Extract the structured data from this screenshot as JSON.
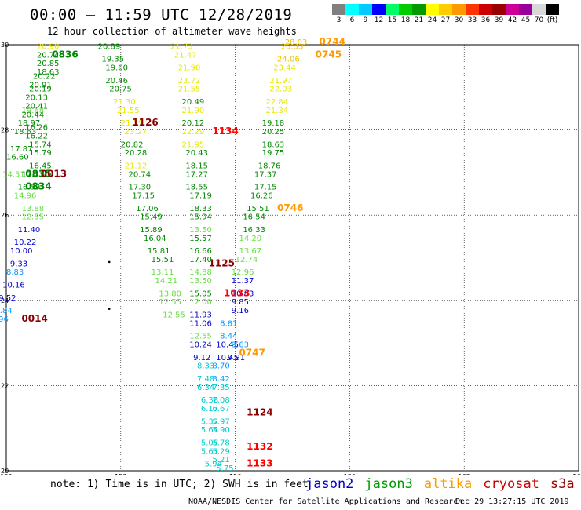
{
  "title": "00:00 — 11:59 UTC 12/28/2019",
  "subtitle": "12 hour collection of altimeter wave heights",
  "colorbar": {
    "colors": [
      "#808080",
      "#00ffff",
      "#00ccff",
      "#0000ff",
      "#00ff66",
      "#00cc00",
      "#009900",
      "#ffff00",
      "#ffcc00",
      "#ff9900",
      "#ff3300",
      "#cc0000",
      "#990000",
      "#cc0099",
      "#990099",
      "#d8d8d8",
      "#000000"
    ],
    "ticks": [
      "3",
      "6",
      "9",
      "12",
      "15",
      "18",
      "21",
      "24",
      "27",
      "30",
      "33",
      "36",
      "39",
      "42",
      "45",
      "70",
      "(ft)"
    ]
  },
  "map": {
    "lon_range": [
      150,
      165
    ],
    "lat_range": [
      20,
      30
    ],
    "x_ticks": [
      "150",
      "153",
      "156",
      "159",
      "162",
      "165"
    ],
    "y_ticks": [
      "20",
      "22",
      "24",
      "26",
      "28",
      "30"
    ]
  },
  "colors": {
    "jason2": "#0000cc",
    "jason3": "#009900",
    "altika": "#ff9900",
    "cryosat": "#cc0000",
    "s3a": "#990000",
    "gray": "#808080",
    "cyan": "#00cccc",
    "sky": "#0099ff",
    "lime": "#33cc33",
    "ltgreen": "#66dd44",
    "green": "#008800",
    "yellow": "#e8e800",
    "gold": "#f0c000",
    "orange": "#ff9900",
    "red": "#ff0000",
    "darkred": "#880000"
  },
  "chart_data": {
    "type": "scatter",
    "title": "00:00 — 11:59 UTC 12/28/2019",
    "subtitle": "12 hour collection of altimeter wave heights",
    "xlabel": "",
    "ylabel": "",
    "unit": "ft",
    "points": [
      {
        "lon": 150.8,
        "lat": 29.3,
        "v": "18.63",
        "c": "green"
      },
      {
        "lon": 150.6,
        "lat": 29.0,
        "v": "20.91",
        "c": "green"
      },
      {
        "lon": 150.4,
        "lat": 28.4,
        "v": "19.68",
        "c": "ltgreen"
      },
      {
        "lon": 150.3,
        "lat": 28.1,
        "v": "18.97",
        "c": "green"
      },
      {
        "lon": 150.2,
        "lat": 27.9,
        "v": "18.63",
        "c": "green"
      },
      {
        "lon": 150.1,
        "lat": 27.5,
        "v": "17.87",
        "c": "green"
      },
      {
        "lon": 150.0,
        "lat": 27.3,
        "v": "16.60",
        "c": "green"
      },
      {
        "lon": 149.9,
        "lat": 26.9,
        "v": "14.51",
        "c": "ltgreen"
      },
      {
        "lon": 150.5,
        "lat": 26.9,
        "v": "0835",
        "c": "green",
        "time": true
      },
      {
        "lon": 150.5,
        "lat": 26.6,
        "v": "0834",
        "c": "green",
        "time": true
      },
      {
        "lon": 150.9,
        "lat": 26.9,
        "v": "0013",
        "c": "darkred",
        "time": true
      },
      {
        "lon": 150.4,
        "lat": 25.9,
        "v": "12.55",
        "c": "ltgreen"
      },
      {
        "lon": 150.3,
        "lat": 25.6,
        "v": "11.40",
        "c": "jason2"
      },
      {
        "lon": 150.2,
        "lat": 25.3,
        "v": "10.22",
        "c": "jason2"
      },
      {
        "lon": 150.1,
        "lat": 25.1,
        "v": "10.00",
        "c": "jason2"
      },
      {
        "lon": 150.1,
        "lat": 24.8,
        "v": "9.33",
        "c": "jason2"
      },
      {
        "lon": 150.0,
        "lat": 24.6,
        "v": "8.83",
        "c": "sky"
      },
      {
        "lon": 149.9,
        "lat": 24.3,
        "v": "10.16",
        "c": "jason2"
      },
      {
        "lon": 149.8,
        "lat": 24.0,
        "v": "9.52",
        "c": "jason2"
      },
      {
        "lon": 149.7,
        "lat": 23.7,
        "v": "6.84",
        "c": "sky"
      },
      {
        "lon": 149.6,
        "lat": 23.5,
        "v": "7.96",
        "c": "sky"
      },
      {
        "lon": 150.4,
        "lat": 23.5,
        "v": "0014",
        "c": "darkred",
        "time": true
      },
      {
        "lon": 151.2,
        "lat": 29.7,
        "v": "0836",
        "c": "green",
        "time": true
      },
      {
        "lon": 152.4,
        "lat": 29.9,
        "v": "20.89",
        "c": "green"
      },
      {
        "lon": 152.5,
        "lat": 29.6,
        "v": "19.35",
        "c": "green"
      },
      {
        "lon": 152.6,
        "lat": 29.4,
        "v": "19.60",
        "c": "green"
      },
      {
        "lon": 152.6,
        "lat": 29.1,
        "v": "20.46",
        "c": "green"
      },
      {
        "lon": 152.7,
        "lat": 28.9,
        "v": "20.75",
        "c": "green"
      },
      {
        "lon": 152.8,
        "lat": 28.6,
        "v": "21.30",
        "c": "yellow"
      },
      {
        "lon": 152.9,
        "lat": 28.4,
        "v": "21.55",
        "c": "yellow"
      },
      {
        "lon": 153.0,
        "lat": 28.1,
        "v": "21.29",
        "c": "yellow"
      },
      {
        "lon": 153.1,
        "lat": 27.9,
        "v": "23.27",
        "c": "yellow"
      },
      {
        "lon": 153.3,
        "lat": 28.1,
        "v": "1126",
        "c": "darkred",
        "time": true
      },
      {
        "lon": 153.0,
        "lat": 27.6,
        "v": "20.82",
        "c": "green"
      },
      {
        "lon": 153.1,
        "lat": 27.4,
        "v": "20.28",
        "c": "green"
      },
      {
        "lon": 153.1,
        "lat": 27.1,
        "v": "21.12",
        "c": "yellow"
      },
      {
        "lon": 153.2,
        "lat": 26.9,
        "v": "20.74",
        "c": "green"
      },
      {
        "lon": 153.2,
        "lat": 26.6,
        "v": "17.30",
        "c": "green"
      },
      {
        "lon": 153.3,
        "lat": 26.4,
        "v": "17.15",
        "c": "green"
      },
      {
        "lon": 153.4,
        "lat": 26.1,
        "v": "17.06",
        "c": "green"
      },
      {
        "lon": 153.5,
        "lat": 25.9,
        "v": "15.49",
        "c": "green"
      },
      {
        "lon": 153.5,
        "lat": 25.6,
        "v": "15.89",
        "c": "green"
      },
      {
        "lon": 153.6,
        "lat": 25.4,
        "v": "16.04",
        "c": "green"
      },
      {
        "lon": 153.7,
        "lat": 25.1,
        "v": "15.81",
        "c": "green"
      },
      {
        "lon": 153.8,
        "lat": 24.9,
        "v": "15.51",
        "c": "green"
      },
      {
        "lon": 153.8,
        "lat": 24.6,
        "v": "13.11",
        "c": "ltgreen"
      },
      {
        "lon": 153.9,
        "lat": 24.4,
        "v": "14.21",
        "c": "ltgreen"
      },
      {
        "lon": 154.0,
        "lat": 24.1,
        "v": "13.80",
        "c": "ltgreen"
      },
      {
        "lon": 154.0,
        "lat": 23.9,
        "v": "12.55",
        "c": "ltgreen"
      },
      {
        "lon": 154.1,
        "lat": 23.6,
        "v": "12.55",
        "c": "ltgreen"
      },
      {
        "lon": 154.3,
        "lat": 29.9,
        "v": "21.73",
        "c": "yellow"
      },
      {
        "lon": 154.4,
        "lat": 29.7,
        "v": "21.47",
        "c": "yellow"
      },
      {
        "lon": 154.5,
        "lat": 29.4,
        "v": "21.90",
        "c": "yellow"
      },
      {
        "lon": 154.5,
        "lat": 29.1,
        "v": "23.72",
        "c": "yellow"
      },
      {
        "lon": 154.5,
        "lat": 28.9,
        "v": "21.55",
        "c": "yellow"
      },
      {
        "lon": 154.6,
        "lat": 28.6,
        "v": "20.49",
        "c": "green"
      },
      {
        "lon": 154.6,
        "lat": 28.4,
        "v": "21.90",
        "c": "yellow"
      },
      {
        "lon": 154.6,
        "lat": 28.1,
        "v": "20.12",
        "c": "green"
      },
      {
        "lon": 154.6,
        "lat": 27.9,
        "v": "22.29",
        "c": "yellow"
      },
      {
        "lon": 155.4,
        "lat": 27.9,
        "v": "1134",
        "c": "red",
        "time": true
      },
      {
        "lon": 154.6,
        "lat": 27.6,
        "v": "21.95",
        "c": "yellow"
      },
      {
        "lon": 154.7,
        "lat": 27.4,
        "v": "20.43",
        "c": "green"
      },
      {
        "lon": 154.7,
        "lat": 27.1,
        "v": "18.15",
        "c": "green"
      },
      {
        "lon": 154.7,
        "lat": 26.9,
        "v": "17.27",
        "c": "green"
      },
      {
        "lon": 154.7,
        "lat": 26.6,
        "v": "18.55",
        "c": "green"
      },
      {
        "lon": 154.8,
        "lat": 26.4,
        "v": "17.19",
        "c": "green"
      },
      {
        "lon": 154.8,
        "lat": 26.1,
        "v": "18.33",
        "c": "green"
      },
      {
        "lon": 154.8,
        "lat": 25.9,
        "v": "15.94",
        "c": "green"
      },
      {
        "lon": 154.8,
        "lat": 25.6,
        "v": "13.50",
        "c": "ltgreen"
      },
      {
        "lon": 154.8,
        "lat": 25.4,
        "v": "15.57",
        "c": "green"
      },
      {
        "lon": 154.8,
        "lat": 25.1,
        "v": "16.66",
        "c": "green"
      },
      {
        "lon": 154.8,
        "lat": 24.9,
        "v": "17.40",
        "c": "green"
      },
      {
        "lon": 155.3,
        "lat": 24.8,
        "v": "1125",
        "c": "darkred",
        "time": true
      },
      {
        "lon": 154.8,
        "lat": 24.6,
        "v": "14.88",
        "c": "ltgreen"
      },
      {
        "lon": 154.8,
        "lat": 24.4,
        "v": "13.50",
        "c": "ltgreen"
      },
      {
        "lon": 154.8,
        "lat": 24.1,
        "v": "15.05",
        "c": "green"
      },
      {
        "lon": 154.8,
        "lat": 23.9,
        "v": "12.00",
        "c": "ltgreen"
      },
      {
        "lon": 154.8,
        "lat": 23.6,
        "v": "11.93",
        "c": "jason2"
      },
      {
        "lon": 154.8,
        "lat": 23.4,
        "v": "11.06",
        "c": "jason2"
      },
      {
        "lon": 154.8,
        "lat": 23.1,
        "v": "12.55",
        "c": "ltgreen"
      },
      {
        "lon": 154.8,
        "lat": 22.9,
        "v": "10.24",
        "c": "jason2"
      },
      {
        "lon": 154.9,
        "lat": 22.6,
        "v": "9.12",
        "c": "jason2"
      },
      {
        "lon": 155.0,
        "lat": 22.4,
        "v": "8.33",
        "c": "cyan"
      },
      {
        "lon": 155.0,
        "lat": 22.1,
        "v": "7.48",
        "c": "cyan"
      },
      {
        "lon": 155.0,
        "lat": 21.9,
        "v": "6.34",
        "c": "cyan"
      },
      {
        "lon": 155.1,
        "lat": 21.6,
        "v": "6.38",
        "c": "cyan"
      },
      {
        "lon": 155.1,
        "lat": 21.4,
        "v": "6.17",
        "c": "cyan"
      },
      {
        "lon": 155.1,
        "lat": 21.1,
        "v": "5.32",
        "c": "cyan"
      },
      {
        "lon": 155.1,
        "lat": 20.9,
        "v": "5.64",
        "c": "cyan"
      },
      {
        "lon": 155.1,
        "lat": 20.6,
        "v": "5.05",
        "c": "cyan"
      },
      {
        "lon": 155.1,
        "lat": 20.4,
        "v": "5.63",
        "c": "cyan"
      },
      {
        "lon": 155.2,
        "lat": 20.1,
        "v": "5.94",
        "c": "cyan"
      },
      {
        "lon": 155.6,
        "lat": 23.4,
        "v": "8.81",
        "c": "sky"
      },
      {
        "lon": 155.6,
        "lat": 23.1,
        "v": "8.44",
        "c": "sky"
      },
      {
        "lon": 155.5,
        "lat": 22.9,
        "v": "10.45",
        "c": "jason2"
      },
      {
        "lon": 155.5,
        "lat": 22.6,
        "v": "10.45",
        "c": "jason2"
      },
      {
        "lon": 155.4,
        "lat": 22.4,
        "v": "8.70",
        "c": "sky"
      },
      {
        "lon": 155.4,
        "lat": 22.1,
        "v": "8.42",
        "c": "sky"
      },
      {
        "lon": 155.4,
        "lat": 21.9,
        "v": "7.35",
        "c": "cyan"
      },
      {
        "lon": 155.4,
        "lat": 21.6,
        "v": "7.08",
        "c": "cyan"
      },
      {
        "lon": 155.4,
        "lat": 21.4,
        "v": "6.67",
        "c": "cyan"
      },
      {
        "lon": 155.4,
        "lat": 21.1,
        "v": "5.97",
        "c": "cyan"
      },
      {
        "lon": 155.4,
        "lat": 20.9,
        "v": "5.90",
        "c": "cyan"
      },
      {
        "lon": 155.4,
        "lat": 20.6,
        "v": "5.78",
        "c": "cyan"
      },
      {
        "lon": 155.4,
        "lat": 20.4,
        "v": "5.29",
        "c": "cyan"
      },
      {
        "lon": 155.4,
        "lat": 20.2,
        "v": "5.21",
        "c": "cyan"
      },
      {
        "lon": 155.5,
        "lat": 20.0,
        "v": "5.75",
        "c": "cyan"
      },
      {
        "lon": 156.3,
        "lat": 21.3,
        "v": "1124",
        "c": "darkred",
        "time": true
      },
      {
        "lon": 156.3,
        "lat": 20.5,
        "v": "1132",
        "c": "red",
        "time": true
      },
      {
        "lon": 156.3,
        "lat": 20.1,
        "v": "1133",
        "c": "red",
        "time": true
      },
      {
        "lon": 156.1,
        "lat": 22.7,
        "v": "0747",
        "c": "orange",
        "time": true
      },
      {
        "lon": 155.9,
        "lat": 22.9,
        "v": "9.63",
        "c": "sky"
      },
      {
        "lon": 155.8,
        "lat": 22.6,
        "v": "9.91",
        "c": "jason2"
      },
      {
        "lon": 155.9,
        "lat": 23.7,
        "v": "9.16",
        "c": "jason2"
      },
      {
        "lon": 155.9,
        "lat": 23.9,
        "v": "9.85",
        "c": "jason2"
      },
      {
        "lon": 155.9,
        "lat": 24.1,
        "v": "10.83",
        "c": "jason2"
      },
      {
        "lon": 155.9,
        "lat": 24.4,
        "v": "11.37",
        "c": "jason2"
      },
      {
        "lon": 155.7,
        "lat": 24.1,
        "v": "1033",
        "c": "red",
        "time": true
      },
      {
        "lon": 155.9,
        "lat": 24.6,
        "v": "12.96",
        "c": "ltgreen"
      },
      {
        "lon": 156.0,
        "lat": 24.9,
        "v": "12.74",
        "c": "ltgreen"
      },
      {
        "lon": 156.1,
        "lat": 25.1,
        "v": "13.67",
        "c": "ltgreen"
      },
      {
        "lon": 156.1,
        "lat": 25.4,
        "v": "14.20",
        "c": "ltgreen"
      },
      {
        "lon": 156.2,
        "lat": 25.6,
        "v": "16.33",
        "c": "green"
      },
      {
        "lon": 156.2,
        "lat": 25.9,
        "v": "16.54",
        "c": "green"
      },
      {
        "lon": 156.3,
        "lat": 26.1,
        "v": "15.51",
        "c": "green"
      },
      {
        "lon": 157.1,
        "lat": 26.1,
        "v": "0746",
        "c": "orange",
        "time": true
      },
      {
        "lon": 156.4,
        "lat": 26.4,
        "v": "16.26",
        "c": "green"
      },
      {
        "lon": 156.5,
        "lat": 26.6,
        "v": "17.15",
        "c": "green"
      },
      {
        "lon": 156.5,
        "lat": 26.9,
        "v": "17.37",
        "c": "green"
      },
      {
        "lon": 156.6,
        "lat": 27.1,
        "v": "18.76",
        "c": "green"
      },
      {
        "lon": 156.7,
        "lat": 27.4,
        "v": "19.75",
        "c": "green"
      },
      {
        "lon": 156.7,
        "lat": 27.6,
        "v": "18.63",
        "c": "green"
      },
      {
        "lon": 156.7,
        "lat": 27.9,
        "v": "20.25",
        "c": "green"
      },
      {
        "lon": 156.7,
        "lat": 28.1,
        "v": "19.18",
        "c": "green"
      },
      {
        "lon": 156.8,
        "lat": 28.4,
        "v": "21.34",
        "c": "yellow"
      },
      {
        "lon": 156.8,
        "lat": 28.6,
        "v": "22.84",
        "c": "yellow"
      },
      {
        "lon": 156.9,
        "lat": 28.9,
        "v": "22.03",
        "c": "yellow"
      },
      {
        "lon": 156.9,
        "lat": 29.1,
        "v": "21.97",
        "c": "yellow"
      },
      {
        "lon": 157.0,
        "lat": 29.4,
        "v": "23.44",
        "c": "yellow"
      },
      {
        "lon": 157.1,
        "lat": 29.6,
        "v": "24.06",
        "c": "gold"
      },
      {
        "lon": 157.2,
        "lat": 29.9,
        "v": "25.33",
        "c": "gold"
      },
      {
        "lon": 157.3,
        "lat": 30.0,
        "v": "28.03",
        "c": "gold"
      },
      {
        "lon": 158.2,
        "lat": 30.0,
        "v": "0744",
        "c": "orange",
        "time": true
      },
      {
        "lon": 158.1,
        "lat": 29.7,
        "v": "0745",
        "c": "orange",
        "time": true
      },
      {
        "lon": 150.8,
        "lat": 29.9,
        "v": "20.90",
        "c": "yellow"
      },
      {
        "lon": 150.8,
        "lat": 29.7,
        "v": "20.74",
        "c": "green"
      },
      {
        "lon": 150.8,
        "lat": 29.5,
        "v": "20.85",
        "c": "green"
      },
      {
        "lon": 150.7,
        "lat": 29.2,
        "v": "20.22",
        "c": "green"
      },
      {
        "lon": 150.6,
        "lat": 28.9,
        "v": "20.19",
        "c": "green"
      },
      {
        "lon": 150.5,
        "lat": 28.7,
        "v": "20.13",
        "c": "green"
      },
      {
        "lon": 150.5,
        "lat": 28.5,
        "v": "20.41",
        "c": "green"
      },
      {
        "lon": 150.4,
        "lat": 28.3,
        "v": "20.44",
        "c": "green"
      },
      {
        "lon": 150.5,
        "lat": 28.0,
        "v": "16.26",
        "c": "green"
      },
      {
        "lon": 150.5,
        "lat": 27.8,
        "v": "16.22",
        "c": "green"
      },
      {
        "lon": 150.6,
        "lat": 27.6,
        "v": "15.74",
        "c": "green"
      },
      {
        "lon": 150.6,
        "lat": 27.4,
        "v": "15.79",
        "c": "green"
      },
      {
        "lon": 150.6,
        "lat": 27.1,
        "v": "16.45",
        "c": "green"
      },
      {
        "lon": 150.4,
        "lat": 26.9,
        "v": "17.27",
        "c": "green"
      },
      {
        "lon": 150.3,
        "lat": 26.6,
        "v": "16.59",
        "c": "green"
      },
      {
        "lon": 150.2,
        "lat": 26.4,
        "v": "14.96",
        "c": "ltgreen"
      },
      {
        "lon": 150.4,
        "lat": 26.1,
        "v": "13.88",
        "c": "ltgreen"
      }
    ],
    "dots": [
      {
        "lon": 152.7,
        "lat": 24.9
      },
      {
        "lon": 152.7,
        "lat": 23.8
      }
    ]
  },
  "note": "note: 1) Time is in UTC; 2) SWH is in feet",
  "legend": [
    {
      "name": "jason2",
      "color": "#0000cc"
    },
    {
      "name": "jason3",
      "color": "#009900"
    },
    {
      "name": "altika",
      "color": "#ff9900"
    },
    {
      "name": "cryosat",
      "color": "#cc0000"
    },
    {
      "name": "s3a",
      "color": "#990000"
    }
  ],
  "credit": "NOAA/NESDIS Center for Satellite Applications and Research",
  "stamp": "Dec 29 13:27:15 UTC 2019"
}
